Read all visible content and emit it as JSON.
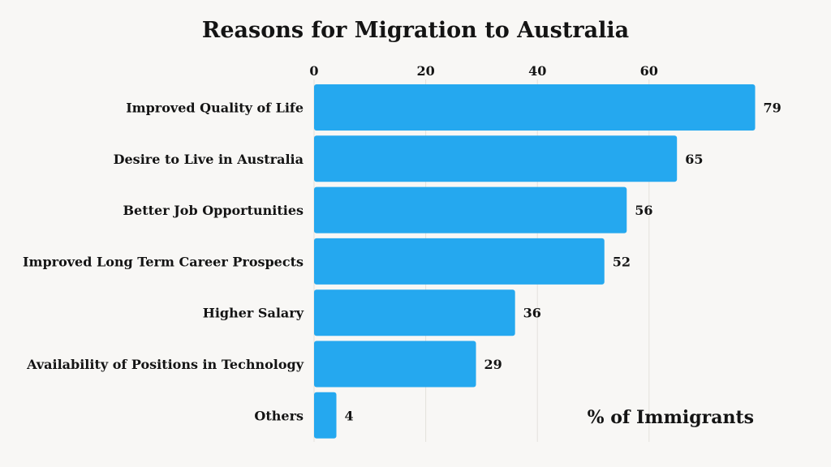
{
  "chart_data": {
    "type": "bar",
    "orientation": "horizontal",
    "title": "Reasons for Migration to Australia",
    "xlabel": "% of Immigrants",
    "ylabel": "",
    "categories": [
      "Improved Quality of Life",
      "Desire to Live in Australia",
      "Better Job Opportunities",
      "Improved Long Term Career Prospects",
      "Higher Salary",
      "Availability of Positions in Technology",
      "Others"
    ],
    "values": [
      79,
      65,
      56,
      52,
      36,
      29,
      4
    ],
    "ticks": [
      0,
      20,
      40,
      60
    ],
    "xlim": [
      0,
      80
    ],
    "grid": true,
    "bar_color": "#25a8ef"
  }
}
